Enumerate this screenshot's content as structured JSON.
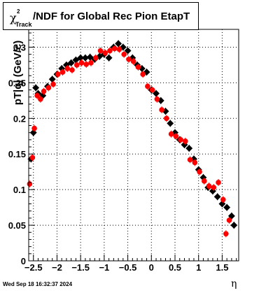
{
  "title": {
    "chi": "χ",
    "sup": "2",
    "sub": "Track",
    "text": "/NDF for Global Rec Pion EtapT"
  },
  "timestamp": "Wed Sep 18 16:32:37 2024",
  "chart_data": {
    "type": "scatter",
    "title": "χ²Track/NDF for Global Rec Pion EtapT",
    "xlabel": "η",
    "ylabel": "pT|q| (GeV/c)",
    "xlim": [
      -2.6,
      1.85
    ],
    "ylim": [
      0,
      0.325
    ],
    "grid": true,
    "x_ticks": [
      -2.5,
      -2,
      -1.5,
      -1,
      -0.5,
      0,
      0.5,
      1,
      1.5
    ],
    "x_tick_labels": [
      "−2.5",
      "−2",
      "−1.5",
      "−1",
      "−0.5",
      "0",
      "0.5",
      "1",
      "1.5"
    ],
    "y_ticks": [
      0,
      0.05,
      0.1,
      0.15,
      0.2,
      0.25,
      0.3
    ],
    "y_tick_labels": [
      "0",
      "0.05",
      "0.1",
      "0.15",
      "0.2",
      "0.25",
      "0.3"
    ],
    "series": [
      {
        "color": "#000000",
        "x": [
          -2.55,
          -2.5,
          -2.45,
          -2.4,
          -2.3,
          -2.2,
          -2.1,
          -2.0,
          -1.9,
          -1.8,
          -1.7,
          -1.6,
          -1.5,
          -1.4,
          -1.3,
          -1.2,
          -1.1,
          -1.0,
          -0.9,
          -0.8,
          -0.7,
          -0.6,
          -0.5,
          -0.4,
          -0.3,
          -0.2,
          -0.1,
          0.0,
          0.1,
          0.2,
          0.3,
          0.4,
          0.5,
          0.6,
          0.7,
          0.8,
          0.9,
          1.0,
          1.1,
          1.2,
          1.3,
          1.4,
          1.5,
          1.6,
          1.7,
          1.75
        ],
        "y": [
          0.143,
          0.18,
          0.243,
          0.235,
          0.232,
          0.245,
          0.255,
          0.262,
          0.27,
          0.275,
          0.278,
          0.282,
          0.285,
          0.285,
          0.286,
          0.283,
          0.287,
          0.29,
          0.285,
          0.3,
          0.305,
          0.3,
          0.295,
          0.285,
          0.275,
          0.27,
          0.265,
          0.24,
          0.235,
          0.225,
          0.21,
          0.193,
          0.18,
          0.17,
          0.163,
          0.158,
          0.143,
          0.128,
          0.117,
          0.103,
          0.098,
          0.09,
          0.08,
          0.075,
          0.063,
          0.05
        ]
      },
      {
        "color": "#ff0000",
        "x": [
          -2.58,
          -2.52,
          -2.48,
          -2.42,
          -2.35,
          -2.28,
          -2.18,
          -2.08,
          -1.98,
          -1.88,
          -1.78,
          -1.68,
          -1.58,
          -1.48,
          -1.38,
          -1.28,
          -1.18,
          -1.08,
          -0.98,
          -0.88,
          -0.78,
          -0.68,
          -0.58,
          -0.48,
          -0.38,
          -0.28,
          -0.18,
          -0.08,
          0.02,
          0.12,
          0.22,
          0.32,
          0.42,
          0.52,
          0.62,
          0.72,
          0.82,
          0.92,
          1.02,
          1.12,
          1.22,
          1.32,
          1.42,
          1.52,
          1.58,
          1.65
        ],
        "y": [
          0.108,
          0.145,
          0.186,
          0.232,
          0.227,
          0.238,
          0.243,
          0.248,
          0.262,
          0.265,
          0.27,
          0.268,
          0.275,
          0.278,
          0.276,
          0.278,
          0.285,
          0.295,
          0.292,
          0.295,
          0.298,
          0.297,
          0.29,
          0.283,
          0.28,
          0.272,
          0.262,
          0.245,
          0.24,
          0.227,
          0.212,
          0.2,
          0.178,
          0.175,
          0.17,
          0.168,
          0.142,
          0.138,
          0.125,
          0.112,
          0.105,
          0.103,
          0.11,
          0.086,
          0.038,
          0.057
        ]
      }
    ]
  }
}
